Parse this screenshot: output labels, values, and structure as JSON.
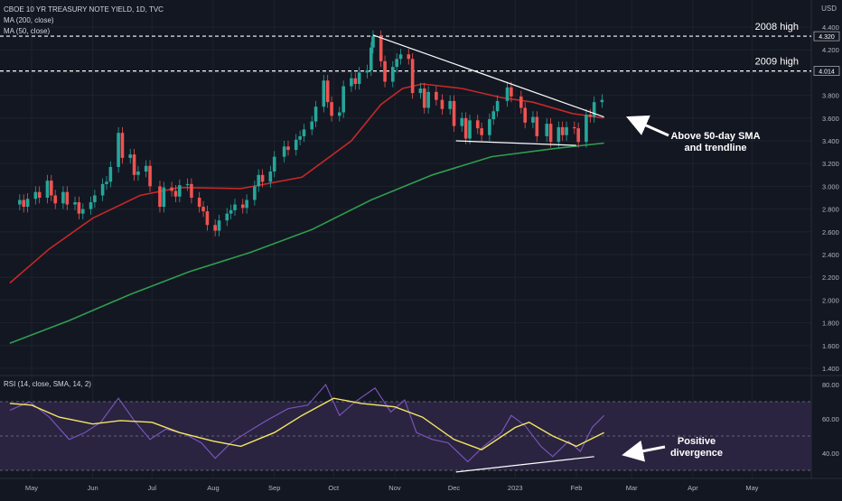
{
  "header": {
    "title": "CBOE 10 YR TREASURY NOTE YIELD, 1D, TVC",
    "ma200": "MA (200, close)",
    "ma50": "MA (50, close)",
    "currency": "USD"
  },
  "rsi_label": "RSI (14, close, SMA, 14, 2)",
  "annotations": {
    "high_2008": "2008 high",
    "high_2009": "2009 high",
    "sma_line1": "Above 50-day SMA",
    "sma_line2": "and trendline",
    "div_line1": "Positive",
    "div_line2": "divergence"
  },
  "colors": {
    "background": "#131722",
    "up": "#26a69a",
    "down": "#ef5350",
    "ma50": "#c62828",
    "ma200": "#2e9e4e",
    "rsi": "#7e57c2",
    "rsi_sma": "#f5e663",
    "rsi_band": "#2a2440"
  },
  "chart_data": [
    {
      "type": "candlestick",
      "title": "CBOE 10 YR TREASURY NOTE YIELD, 1D, TVC",
      "y_tick_labels": [
        "4.400",
        "4.200",
        "4.000",
        "3.800",
        "3.600",
        "3.400",
        "3.200",
        "3.000",
        "2.800",
        "2.600",
        "2.400",
        "2.200",
        "2.000",
        "1.800",
        "1.600",
        "1.400"
      ],
      "x_tick_labels": [
        "May",
        "Jun",
        "Jul",
        "Aug",
        "Sep",
        "Oct",
        "Nov",
        "Dec",
        "2023",
        "Feb",
        "Mar",
        "Apr",
        "May"
      ],
      "ylim": [
        1.4,
        4.45
      ],
      "price_labels": [
        "4.320",
        "4.014"
      ],
      "horizontal_levels": [
        {
          "value": 4.32,
          "label": "2008 high"
        },
        {
          "value": 4.014,
          "label": "2009 high"
        }
      ],
      "series": [
        {
          "name": "MA (200, close)",
          "points": [
            [
              "2022-04-20",
              1.62
            ],
            [
              "2022-05-20",
              1.82
            ],
            [
              "2022-06-20",
              2.05
            ],
            [
              "2022-07-20",
              2.25
            ],
            [
              "2022-08-20",
              2.42
            ],
            [
              "2022-09-20",
              2.62
            ],
            [
              "2022-10-20",
              2.88
            ],
            [
              "2022-11-20",
              3.1
            ],
            [
              "2022-12-20",
              3.26
            ],
            [
              "2023-01-20",
              3.33
            ],
            [
              "2023-02-15",
              3.38
            ]
          ]
        },
        {
          "name": "MA (50, close)",
          "points": [
            [
              "2022-04-20",
              2.15
            ],
            [
              "2022-05-10",
              2.45
            ],
            [
              "2022-06-01",
              2.72
            ],
            [
              "2022-06-25",
              2.92
            ],
            [
              "2022-07-15",
              2.99
            ],
            [
              "2022-08-15",
              2.98
            ],
            [
              "2022-09-15",
              3.08
            ],
            [
              "2022-10-10",
              3.4
            ],
            [
              "2022-10-25",
              3.72
            ],
            [
              "2022-11-05",
              3.86
            ],
            [
              "2022-11-15",
              3.9
            ],
            [
              "2022-12-05",
              3.86
            ],
            [
              "2022-12-25",
              3.78
            ],
            [
              "2023-01-10",
              3.74
            ],
            [
              "2023-01-30",
              3.64
            ],
            [
              "2023-02-15",
              3.6
            ]
          ]
        }
      ],
      "trendlines": [
        {
          "from": [
            "2022-10-21",
            4.33
          ],
          "to": [
            "2023-02-15",
            3.61
          ]
        },
        {
          "from": [
            "2022-12-02",
            3.4
          ],
          "to": [
            "2023-02-01",
            3.36
          ]
        }
      ],
      "candles": [
        [
          "2022-04-25",
          2.84,
          2.88
        ],
        [
          "2022-04-27",
          2.88,
          2.82
        ],
        [
          "2022-04-29",
          2.82,
          2.89
        ],
        [
          "2022-05-03",
          2.89,
          2.95
        ],
        [
          "2022-05-05",
          2.95,
          2.9
        ],
        [
          "2022-05-09",
          2.9,
          3.05
        ],
        [
          "2022-05-11",
          3.05,
          2.92
        ],
        [
          "2022-05-13",
          2.92,
          2.85
        ],
        [
          "2022-05-17",
          2.85,
          2.95
        ],
        [
          "2022-05-19",
          2.95,
          2.84
        ],
        [
          "2022-05-23",
          2.84,
          2.86
        ],
        [
          "2022-05-25",
          2.86,
          2.76
        ],
        [
          "2022-05-27",
          2.76,
          2.8
        ],
        [
          "2022-05-31",
          2.8,
          2.86
        ],
        [
          "2022-06-02",
          2.86,
          2.92
        ],
        [
          "2022-06-06",
          2.92,
          3.02
        ],
        [
          "2022-06-08",
          3.02,
          3.04
        ],
        [
          "2022-06-10",
          3.04,
          3.17
        ],
        [
          "2022-06-14",
          3.17,
          3.47
        ],
        [
          "2022-06-16",
          3.47,
          3.25
        ],
        [
          "2022-06-20",
          3.25,
          3.28
        ],
        [
          "2022-06-22",
          3.28,
          3.1
        ],
        [
          "2022-06-24",
          3.1,
          3.13
        ],
        [
          "2022-06-28",
          3.13,
          3.18
        ],
        [
          "2022-06-30",
          3.18,
          3.0
        ],
        [
          "2022-07-05",
          3.0,
          2.82
        ],
        [
          "2022-07-07",
          2.82,
          2.99
        ],
        [
          "2022-07-11",
          2.99,
          2.96
        ],
        [
          "2022-07-13",
          2.96,
          2.91
        ],
        [
          "2022-07-15",
          2.91,
          3.01
        ],
        [
          "2022-07-19",
          3.01,
          3.02
        ],
        [
          "2022-07-21",
          3.02,
          2.9
        ],
        [
          "2022-07-25",
          2.9,
          2.82
        ],
        [
          "2022-07-27",
          2.82,
          2.78
        ],
        [
          "2022-07-29",
          2.78,
          2.66
        ],
        [
          "2022-08-02",
          2.66,
          2.61
        ],
        [
          "2022-08-04",
          2.61,
          2.7
        ],
        [
          "2022-08-08",
          2.7,
          2.76
        ],
        [
          "2022-08-10",
          2.76,
          2.79
        ],
        [
          "2022-08-12",
          2.79,
          2.84
        ],
        [
          "2022-08-16",
          2.84,
          2.81
        ],
        [
          "2022-08-18",
          2.81,
          2.88
        ],
        [
          "2022-08-22",
          2.88,
          3.0
        ],
        [
          "2022-08-24",
          3.0,
          3.1
        ],
        [
          "2022-08-26",
          3.1,
          3.04
        ],
        [
          "2022-08-30",
          3.04,
          3.13
        ],
        [
          "2022-09-01",
          3.13,
          3.26
        ],
        [
          "2022-09-06",
          3.26,
          3.35
        ],
        [
          "2022-09-08",
          3.35,
          3.32
        ],
        [
          "2022-09-12",
          3.32,
          3.41
        ],
        [
          "2022-09-14",
          3.41,
          3.44
        ],
        [
          "2022-09-16",
          3.44,
          3.5
        ],
        [
          "2022-09-20",
          3.5,
          3.57
        ],
        [
          "2022-09-22",
          3.57,
          3.7
        ],
        [
          "2022-09-26",
          3.7,
          3.93
        ],
        [
          "2022-09-28",
          3.93,
          3.74
        ],
        [
          "2022-09-30",
          3.74,
          3.62
        ],
        [
          "2022-10-04",
          3.62,
          3.65
        ],
        [
          "2022-10-06",
          3.65,
          3.88
        ],
        [
          "2022-10-10",
          3.88,
          3.95
        ],
        [
          "2022-10-12",
          3.95,
          3.9
        ],
        [
          "2022-10-14",
          3.9,
          4.0
        ],
        [
          "2022-10-18",
          4.0,
          4.02
        ],
        [
          "2022-10-20",
          4.02,
          4.22
        ],
        [
          "2022-10-21",
          4.22,
          4.32
        ],
        [
          "2022-10-25",
          4.32,
          4.1
        ],
        [
          "2022-10-27",
          4.1,
          3.92
        ],
        [
          "2022-10-31",
          3.92,
          4.05
        ],
        [
          "2022-11-02",
          4.05,
          4.12
        ],
        [
          "2022-11-04",
          4.12,
          4.16
        ],
        [
          "2022-11-08",
          4.16,
          4.12
        ],
        [
          "2022-11-10",
          4.12,
          3.82
        ],
        [
          "2022-11-14",
          3.82,
          3.86
        ],
        [
          "2022-11-16",
          3.86,
          3.69
        ],
        [
          "2022-11-18",
          3.69,
          3.83
        ],
        [
          "2022-11-22",
          3.83,
          3.76
        ],
        [
          "2022-11-25",
          3.76,
          3.68
        ],
        [
          "2022-11-29",
          3.68,
          3.75
        ],
        [
          "2022-12-01",
          3.75,
          3.53
        ],
        [
          "2022-12-05",
          3.53,
          3.6
        ],
        [
          "2022-12-07",
          3.6,
          3.42
        ],
        [
          "2022-12-09",
          3.42,
          3.58
        ],
        [
          "2022-12-13",
          3.58,
          3.51
        ],
        [
          "2022-12-15",
          3.51,
          3.45
        ],
        [
          "2022-12-19",
          3.45,
          3.59
        ],
        [
          "2022-12-21",
          3.59,
          3.66
        ],
        [
          "2022-12-23",
          3.66,
          3.75
        ],
        [
          "2022-12-28",
          3.75,
          3.87
        ],
        [
          "2022-12-30",
          3.87,
          3.79
        ],
        [
          "2023-01-04",
          3.79,
          3.69
        ],
        [
          "2023-01-06",
          3.69,
          3.56
        ],
        [
          "2023-01-10",
          3.56,
          3.61
        ],
        [
          "2023-01-12",
          3.61,
          3.44
        ],
        [
          "2023-01-17",
          3.44,
          3.55
        ],
        [
          "2023-01-19",
          3.55,
          3.39
        ],
        [
          "2023-01-23",
          3.39,
          3.52
        ],
        [
          "2023-01-25",
          3.52,
          3.45
        ],
        [
          "2023-01-27",
          3.45,
          3.52
        ],
        [
          "2023-01-31",
          3.52,
          3.51
        ],
        [
          "2023-02-02",
          3.51,
          3.39
        ],
        [
          "2023-02-06",
          3.39,
          3.63
        ],
        [
          "2023-02-08",
          3.63,
          3.61
        ],
        [
          "2023-02-10",
          3.61,
          3.74
        ],
        [
          "2023-02-14",
          3.74,
          3.76
        ]
      ]
    },
    {
      "type": "line",
      "title": "RSI (14, close, SMA, 14, 2)",
      "y_tick_labels": [
        "80.00",
        "60.00",
        "40.00"
      ],
      "ylim": [
        29,
        84
      ],
      "bands": [
        70,
        50,
        30
      ],
      "series": [
        {
          "name": "RSI",
          "points": [
            [
              "2022-04-20",
              65
            ],
            [
              "2022-04-30",
              70
            ],
            [
              "2022-05-10",
              61
            ],
            [
              "2022-05-20",
              48
            ],
            [
              "2022-05-28",
              52
            ],
            [
              "2022-06-05",
              58
            ],
            [
              "2022-06-14",
              72
            ],
            [
              "2022-06-22",
              59
            ],
            [
              "2022-06-30",
              48
            ],
            [
              "2022-07-08",
              54
            ],
            [
              "2022-07-18",
              51
            ],
            [
              "2022-07-26",
              46
            ],
            [
              "2022-08-02",
              37
            ],
            [
              "2022-08-10",
              46
            ],
            [
              "2022-08-18",
              52
            ],
            [
              "2022-08-28",
              59
            ],
            [
              "2022-09-08",
              66
            ],
            [
              "2022-09-18",
              68
            ],
            [
              "2022-09-27",
              80
            ],
            [
              "2022-10-04",
              62
            ],
            [
              "2022-10-12",
              70
            ],
            [
              "2022-10-22",
              78
            ],
            [
              "2022-10-30",
              64
            ],
            [
              "2022-11-06",
              71
            ],
            [
              "2022-11-12",
              52
            ],
            [
              "2022-11-20",
              48
            ],
            [
              "2022-11-28",
              46
            ],
            [
              "2022-12-08",
              35
            ],
            [
              "2022-12-16",
              44
            ],
            [
              "2022-12-25",
              52
            ],
            [
              "2022-12-30",
              62
            ],
            [
              "2023-01-06",
              56
            ],
            [
              "2023-01-14",
              44
            ],
            [
              "2023-01-20",
              38
            ],
            [
              "2023-01-28",
              47
            ],
            [
              "2023-02-03",
              41
            ],
            [
              "2023-02-09",
              55
            ],
            [
              "2023-02-15",
              62
            ]
          ]
        },
        {
          "name": "RSI SMA",
          "points": [
            [
              "2022-04-20",
              69
            ],
            [
              "2022-05-01",
              68
            ],
            [
              "2022-05-15",
              61
            ],
            [
              "2022-06-01",
              57
            ],
            [
              "2022-06-15",
              59
            ],
            [
              "2022-07-01",
              58
            ],
            [
              "2022-07-15",
              52
            ],
            [
              "2022-08-01",
              47
            ],
            [
              "2022-08-15",
              44
            ],
            [
              "2022-09-01",
              52
            ],
            [
              "2022-09-15",
              62
            ],
            [
              "2022-10-01",
              72
            ],
            [
              "2022-10-15",
              69
            ],
            [
              "2022-11-01",
              67
            ],
            [
              "2022-11-15",
              61
            ],
            [
              "2022-12-01",
              48
            ],
            [
              "2022-12-15",
              42
            ],
            [
              "2023-01-01",
              55
            ],
            [
              "2023-01-08",
              58
            ],
            [
              "2023-01-20",
              50
            ],
            [
              "2023-02-01",
              44
            ],
            [
              "2023-02-15",
              52
            ]
          ]
        }
      ],
      "trendlines": [
        {
          "from": [
            "2022-12-02",
            29
          ],
          "to": [
            "2023-02-10",
            38
          ]
        }
      ]
    }
  ]
}
